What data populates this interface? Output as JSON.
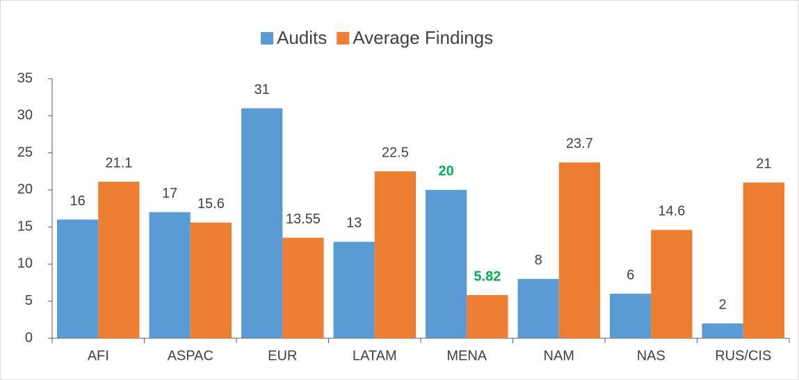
{
  "chart_data": {
    "type": "bar",
    "categories": [
      "AFI",
      "ASPAC",
      "EUR",
      "LATAM",
      "MENA",
      "NAM",
      "NAS",
      "RUS/CIS"
    ],
    "series": [
      {
        "name": "Audits",
        "color": "#5b9bd5",
        "values": [
          16,
          17,
          31,
          13,
          20,
          8,
          6,
          2
        ]
      },
      {
        "name": "Average Findings",
        "color": "#ed7d31",
        "values": [
          21.1,
          15.6,
          13.55,
          22.5,
          5.82,
          23.7,
          14.6,
          21
        ]
      }
    ],
    "ylim": [
      0,
      35
    ],
    "yticks": [
      0,
      5,
      10,
      15,
      20,
      25,
      30,
      35
    ],
    "grid": false,
    "legend": "top",
    "highlight_category": "MENA",
    "highlight_color": "#00b050"
  }
}
